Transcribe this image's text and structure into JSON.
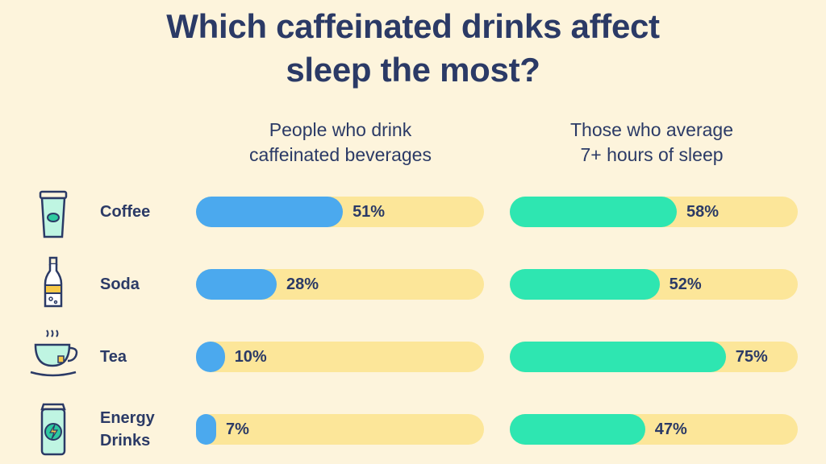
{
  "chart_data": {
    "type": "bar",
    "title": "Which caffeinated drinks affect sleep the most?",
    "categories": [
      "Coffee",
      "Soda",
      "Tea",
      "Energy Drinks"
    ],
    "xlim": [
      0,
      100
    ],
    "track_color": "#fce699",
    "series": [
      {
        "name": "People who drink caffeinated beverages",
        "color": "#4ba9ee",
        "values": [
          51,
          28,
          10,
          7
        ],
        "value_labels": [
          "51%",
          "28%",
          "10%",
          "7%"
        ]
      },
      {
        "name": "Those who average 7+ hours of sleep",
        "color": "#2ee6b1",
        "values": [
          58,
          52,
          75,
          47
        ],
        "value_labels": [
          "58%",
          "52%",
          "75%",
          "47%"
        ]
      }
    ]
  }
}
